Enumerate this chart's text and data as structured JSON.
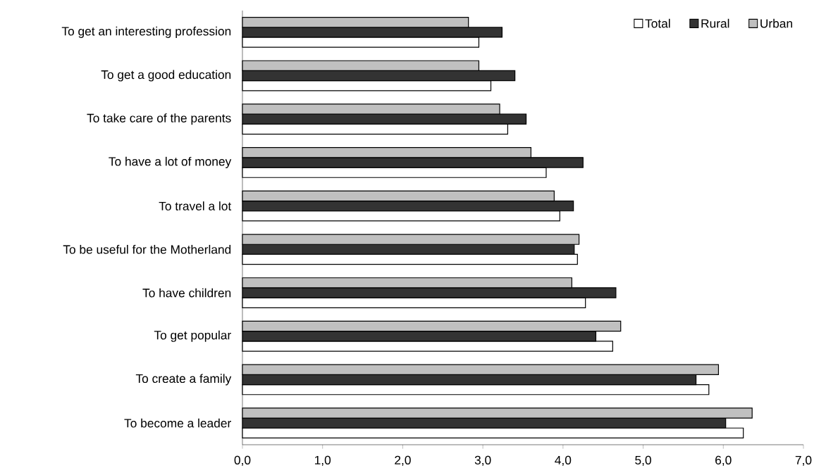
{
  "chart_data": {
    "type": "bar",
    "orientation": "horizontal",
    "categories": [
      "To get an interesting profession",
      "To get a good education",
      "To take care of the parents",
      "To have a lot of money",
      "To travel a lot",
      "To be useful for the Motherland",
      "To have children",
      "To get popular",
      "To create a family",
      "To become a leader"
    ],
    "series": [
      {
        "name": "Total",
        "color": "#ffffff",
        "values": [
          2.95,
          3.1,
          3.31,
          3.79,
          3.96,
          4.18,
          4.28,
          4.62,
          5.82,
          6.25
        ]
      },
      {
        "name": "Rural",
        "color": "#333333",
        "values": [
          3.24,
          3.4,
          3.54,
          4.25,
          4.13,
          4.14,
          4.66,
          4.41,
          5.66,
          6.03
        ]
      },
      {
        "name": "Urban",
        "color": "#c0c0c0",
        "values": [
          2.82,
          2.95,
          3.21,
          3.6,
          3.89,
          4.2,
          4.11,
          4.72,
          5.94,
          6.36
        ]
      }
    ],
    "xlim": [
      0,
      7
    ],
    "xticks": [
      {
        "value": 0,
        "label": "0,0"
      },
      {
        "value": 1,
        "label": "1,0"
      },
      {
        "value": 2,
        "label": "2,0"
      },
      {
        "value": 3,
        "label": "3,0"
      },
      {
        "value": 4,
        "label": "4,0"
      },
      {
        "value": 5,
        "label": "5,0"
      },
      {
        "value": 6,
        "label": "6,0"
      },
      {
        "value": 7,
        "label": "7,0"
      }
    ],
    "legend": "top right"
  }
}
